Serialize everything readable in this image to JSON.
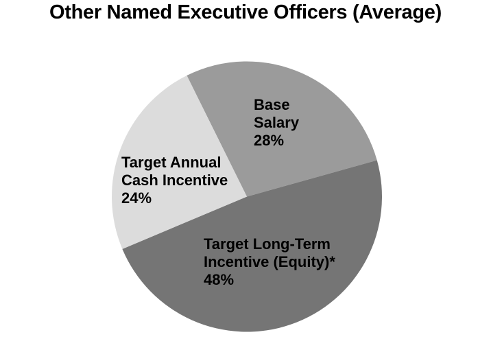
{
  "title": "Other Named Executive Officers (Average)",
  "chart_data": {
    "type": "pie",
    "title": "Other Named Executive Officers (Average)",
    "unit": "%",
    "start_angle_deg": -26.4,
    "direction": "clockwise",
    "labels_inside": true,
    "legend": "none",
    "background_color": "#FFFFFF",
    "text_color": "#000000",
    "slices": [
      {
        "id": "base-salary",
        "label": "Base Salary",
        "label_lines": [
          "Base",
          "Salary"
        ],
        "value": 28,
        "pct_label": "28%",
        "color": "#9B9B9B"
      },
      {
        "id": "target-long-term-incentive",
        "label": "Target Long-Term Incentive (Equity)*",
        "label_lines": [
          "Target Long-Term",
          "Incentive (Equity)*"
        ],
        "value": 48,
        "pct_label": "48%",
        "color": "#757575"
      },
      {
        "id": "target-annual-cash-incentive",
        "label": "Target Annual Cash Incentive",
        "label_lines": [
          "Target Annual",
          "Cash Incentive"
        ],
        "value": 24,
        "pct_label": "24%",
        "color": "#DCDCDC"
      }
    ]
  }
}
